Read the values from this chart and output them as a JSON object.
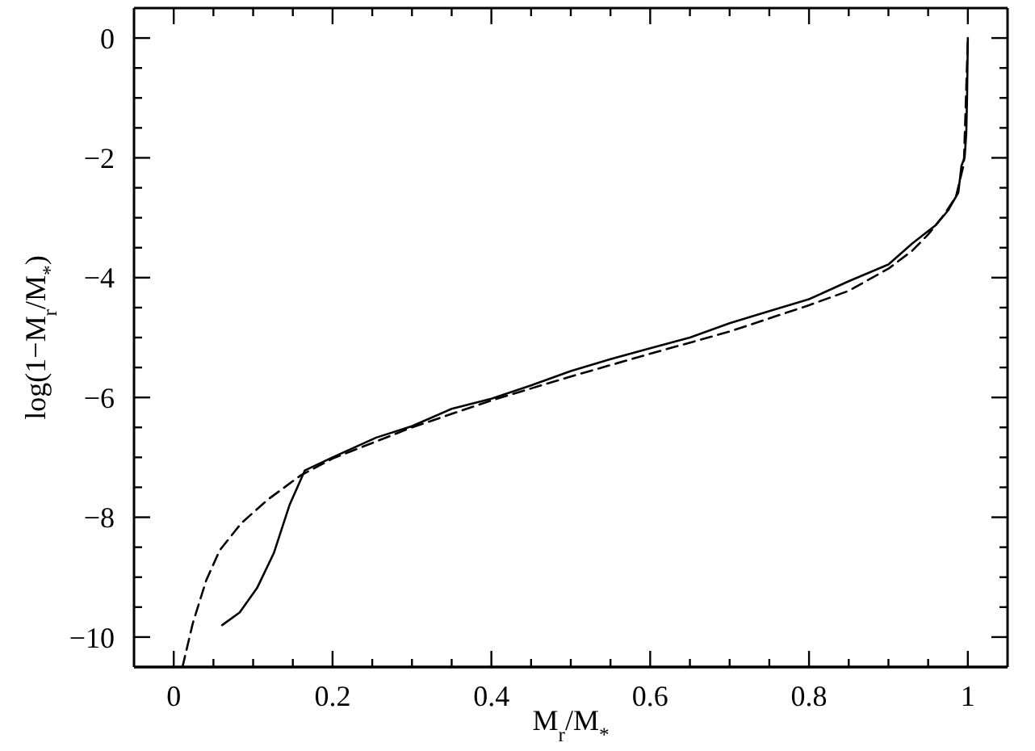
{
  "chart_data": {
    "type": "line",
    "xlabel": "M$_{r}$/M$_{*}$",
    "ylabel": "log(1−M$_{r}$/M$_{*}$)",
    "xlim": [
      -0.05,
      1.05
    ],
    "xticks": [
      0,
      {
        "value": 0.05,
        "label": null
      },
      {
        "value": 0.1,
        "label": null
      },
      {
        "value": 0.15,
        "label": null
      },
      0.2,
      {
        "value": 0.25,
        "label": null
      },
      {
        "value": 0.3,
        "label": null
      },
      {
        "value": 0.35,
        "label": null
      },
      0.4,
      {
        "value": 0.45,
        "label": null
      },
      {
        "value": 0.5,
        "label": null
      },
      {
        "value": 0.55,
        "label": null
      },
      0.6,
      {
        "value": 0.65,
        "label": null
      },
      {
        "value": 0.7,
        "label": null
      },
      {
        "value": 0.75,
        "label": null
      },
      0.8,
      {
        "value": 0.85,
        "label": null
      },
      {
        "value": 0.9,
        "label": null
      },
      {
        "value": 0.95,
        "label": null
      },
      1
    ],
    "ylim": [
      -10.5,
      0.5
    ],
    "yticks": [
      0,
      {
        "value": -0.5,
        "label": null
      },
      {
        "value": -1,
        "label": null
      },
      {
        "value": -1.5,
        "label": null
      },
      {
        "value": -2,
        "label": "−2"
      },
      {
        "value": -2.5,
        "label": null
      },
      {
        "value": -3,
        "label": null
      },
      {
        "value": -3.5,
        "label": null
      },
      {
        "value": -4,
        "label": "−4"
      },
      {
        "value": -4.5,
        "label": null
      },
      {
        "value": -5,
        "label": null
      },
      {
        "value": -5.5,
        "label": null
      },
      {
        "value": -6,
        "label": "−6"
      },
      {
        "value": -6.5,
        "label": null
      },
      {
        "value": -7,
        "label": null
      },
      {
        "value": -7.5,
        "label": null
      },
      {
        "value": -8,
        "label": "−8"
      },
      {
        "value": -8.5,
        "label": null
      },
      {
        "value": -9,
        "label": null
      },
      {
        "value": -9.5,
        "label": null
      },
      {
        "value": -10,
        "label": "−10"
      }
    ],
    "marker": "none",
    "series": [
      {
        "color": "#000000",
        "line_style": "solid",
        "x": [
          0.061,
          0.083,
          0.105,
          0.126,
          0.146,
          0.165,
          0.2,
          0.255,
          0.3,
          0.35,
          0.4,
          0.45,
          0.5,
          0.55,
          0.6,
          0.65,
          0.7,
          0.75,
          0.8,
          0.85,
          0.9,
          0.93,
          0.96,
          0.975,
          0.988,
          0.992,
          0.996,
          0.998,
          0.999,
          1.0
        ],
        "values": [
          -9.8,
          -9.59,
          -9.18,
          -8.6,
          -7.79,
          -7.22,
          -7.0,
          -6.67,
          -6.48,
          -6.19,
          -6.02,
          -5.8,
          -5.56,
          -5.36,
          -5.18,
          -5.0,
          -4.76,
          -4.56,
          -4.36,
          -4.06,
          -3.78,
          -3.43,
          -3.12,
          -2.88,
          -2.58,
          -2.13,
          -1.99,
          -1.59,
          -1.0,
          0.0
        ]
      },
      {
        "color": "#000000",
        "line_style": "dashed",
        "x": [
          0.011,
          0.024,
          0.041,
          0.058,
          0.085,
          0.119,
          0.16,
          0.2,
          0.3,
          0.4,
          0.5,
          0.6,
          0.7,
          0.8,
          0.85,
          0.9,
          0.93,
          0.95,
          0.97,
          0.985,
          0.995,
          1.0
        ],
        "values": [
          -10.5,
          -9.77,
          -9.05,
          -8.55,
          -8.1,
          -7.7,
          -7.3,
          -7.02,
          -6.5,
          -6.05,
          -5.65,
          -5.27,
          -4.9,
          -4.46,
          -4.22,
          -3.85,
          -3.55,
          -3.28,
          -2.95,
          -2.65,
          -2.1,
          0.0
        ]
      }
    ]
  }
}
